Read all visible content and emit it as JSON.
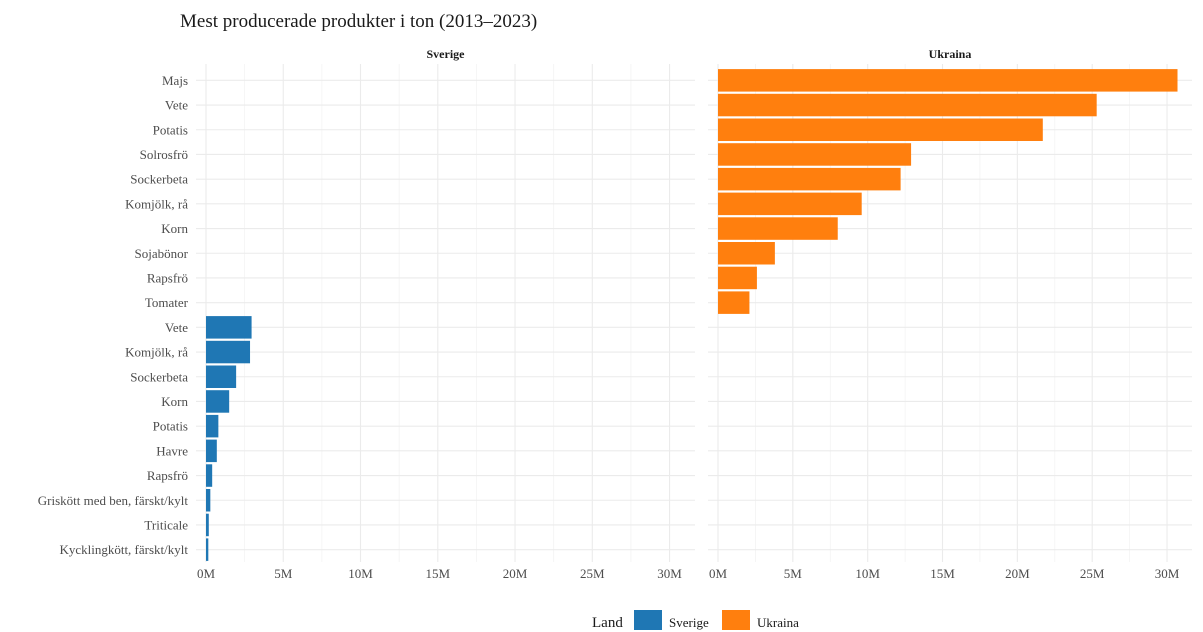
{
  "chart_data": {
    "type": "bar",
    "orientation": "horizontal",
    "title": "Mest producerade produkter i ton (2013–2023)",
    "xlim": [
      0,
      31000000
    ],
    "tick_values": [
      0,
      5000000,
      10000000,
      15000000,
      20000000,
      25000000,
      30000000
    ],
    "tick_labels": [
      "0M",
      "5M",
      "10M",
      "15M",
      "20M",
      "25M",
      "30M"
    ],
    "grid": true,
    "legend": {
      "title": "Land",
      "placement": "bottom",
      "items": [
        {
          "label": "Sverige",
          "color": "#1f77b4"
        },
        {
          "label": "Ukraina",
          "color": "#ff7f0e"
        }
      ]
    },
    "categories": [
      "Majs",
      "Vete",
      "Potatis",
      "Solrosfrö",
      "Sockerbeta",
      "Komjölk, rå",
      "Korn",
      "Sojabönor",
      "Rapsfrö",
      "Tomater",
      "Vete",
      "Komjölk, rå",
      "Sockerbeta",
      "Korn",
      "Potatis",
      "Havre",
      "Rapsfrö",
      "Griskött med ben, färskt/kylt",
      "Triticale",
      "Kycklingkött, färskt/kylt"
    ],
    "panels": [
      {
        "name": "Sverige",
        "color": "#1f77b4",
        "values": [
          null,
          null,
          null,
          null,
          null,
          null,
          null,
          null,
          null,
          null,
          2950000,
          2850000,
          1950000,
          1500000,
          800000,
          700000,
          400000,
          280000,
          180000,
          150000
        ]
      },
      {
        "name": "Ukraina",
        "color": "#ff7f0e",
        "values": [
          30700000,
          25300000,
          21700000,
          12900000,
          12200000,
          9600000,
          8000000,
          3800000,
          2600000,
          2100000,
          null,
          null,
          null,
          null,
          null,
          null,
          null,
          null,
          null,
          null
        ]
      }
    ]
  }
}
